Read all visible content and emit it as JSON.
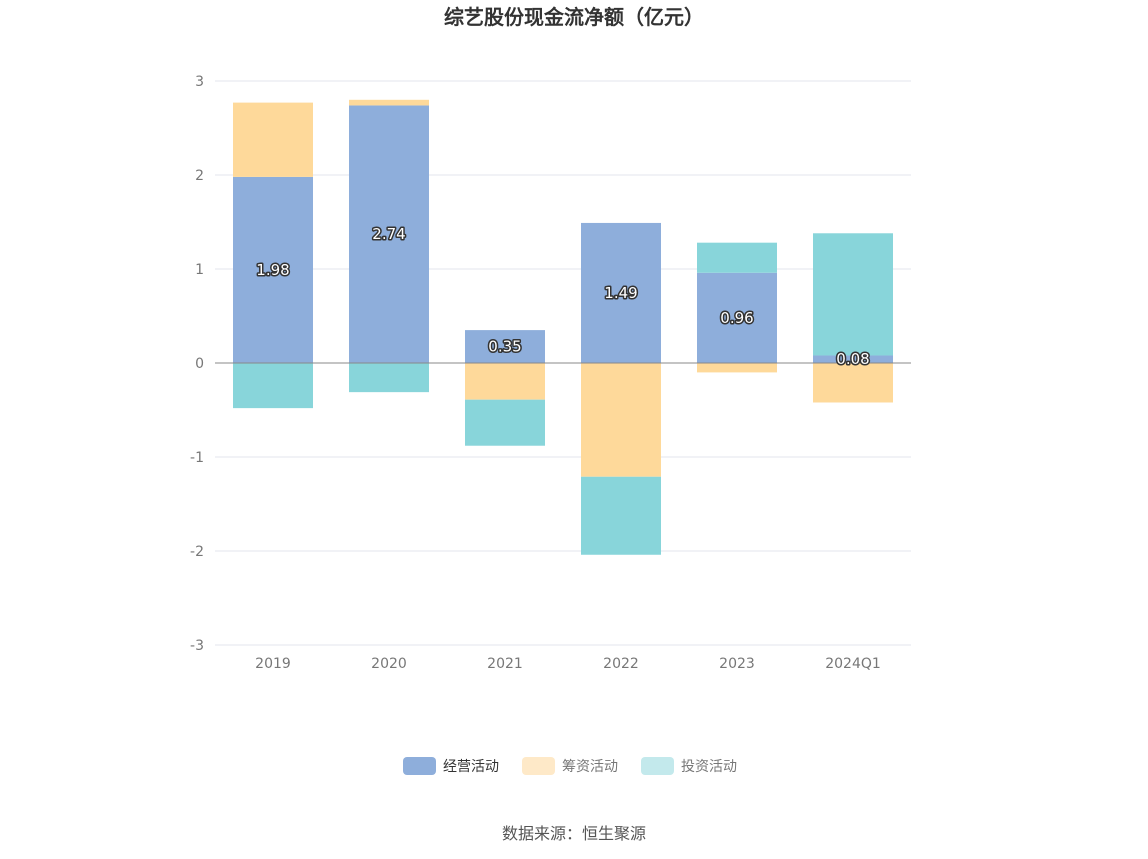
{
  "chart_data": {
    "type": "bar",
    "stacked": true,
    "title": "综艺股份现金流净额（亿元）",
    "categories": [
      "2019",
      "2020",
      "2021",
      "2022",
      "2023",
      "2024Q1"
    ],
    "series": [
      {
        "name": "经营活动",
        "color": "#8eaedb",
        "values": [
          1.98,
          2.74,
          0.35,
          1.49,
          0.96,
          0.08
        ]
      },
      {
        "name": "筹资活动",
        "color": "#fed99a",
        "values": [
          0.79,
          0.06,
          -0.39,
          -1.21,
          -0.1,
          -0.42
        ]
      },
      {
        "name": "投资活动",
        "color": "#88d5da",
        "values": [
          -0.48,
          -0.31,
          -0.49,
          -0.83,
          0.32,
          1.3
        ]
      }
    ],
    "data_labels_series": "经营活动",
    "ylim": [
      -3,
      3
    ],
    "yticks": [
      3,
      2,
      1,
      0,
      -1,
      -2,
      -3
    ],
    "grid": true,
    "legend_position": "bottom"
  },
  "legend_colors": {
    "active_swatch": "#8eaedb",
    "inactive_swatch_1": "#fee9c8",
    "inactive_swatch_2": "#c3e9ec"
  },
  "source": "数据来源：恒生聚源"
}
